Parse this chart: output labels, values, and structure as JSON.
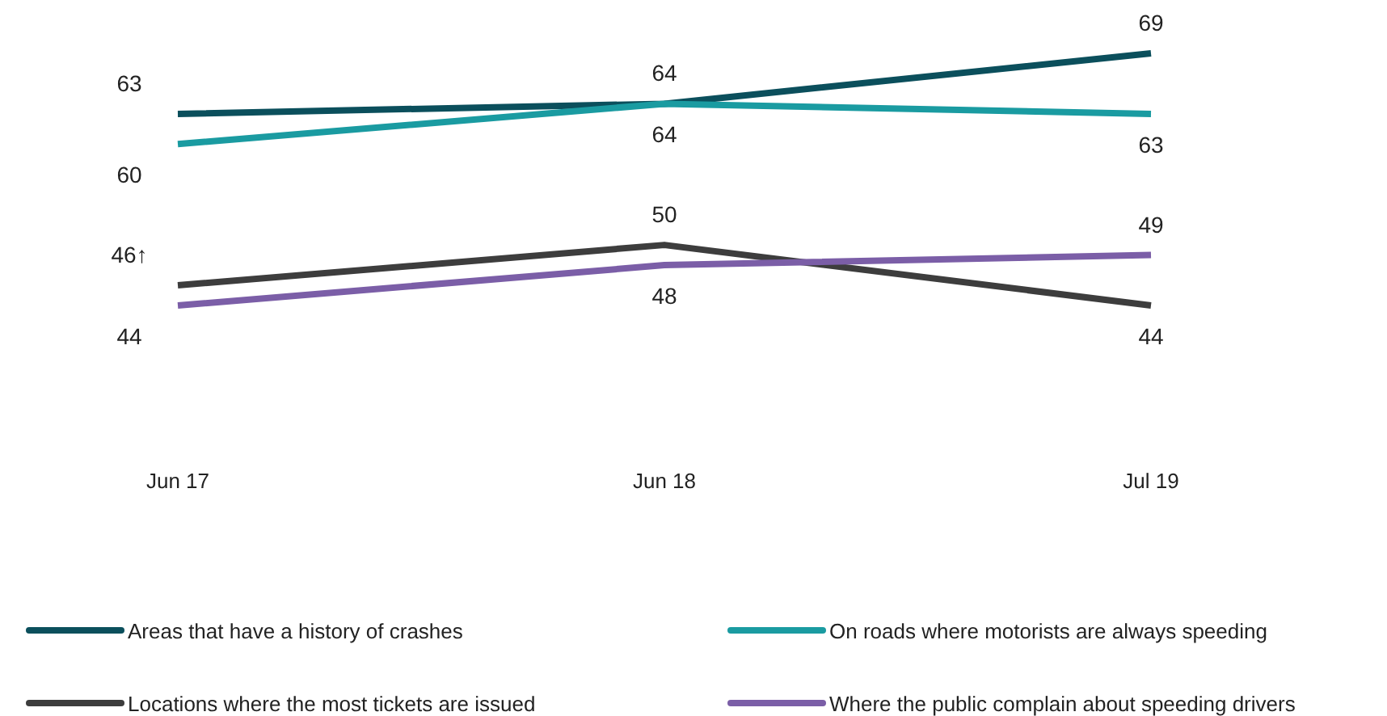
{
  "chart_data": {
    "type": "line",
    "categories": [
      "Jun 17",
      "Jun 18",
      "Jul 19"
    ],
    "tick_labels": "x",
    "data_labels": true,
    "legend": "bottom",
    "marker": "none",
    "line_style": "solid",
    "series": [
      {
        "name": "Areas that have a history of crashes",
        "color": "#0b4f5c",
        "values": [
          63,
          64,
          69
        ]
      },
      {
        "name": "On roads where motorists are always speeding",
        "color": "#1a9ba1",
        "values": [
          60,
          64,
          63
        ]
      },
      {
        "name": "Locations where the most tickets are issued",
        "color": "#3d3d3d",
        "values": [
          46,
          50,
          44
        ],
        "value_labels": [
          "46↑",
          "50",
          "44"
        ]
      },
      {
        "name": "Where the public complain about speeding drivers",
        "color": "#7b5ea7",
        "values": [
          44,
          48,
          49
        ]
      }
    ]
  }
}
